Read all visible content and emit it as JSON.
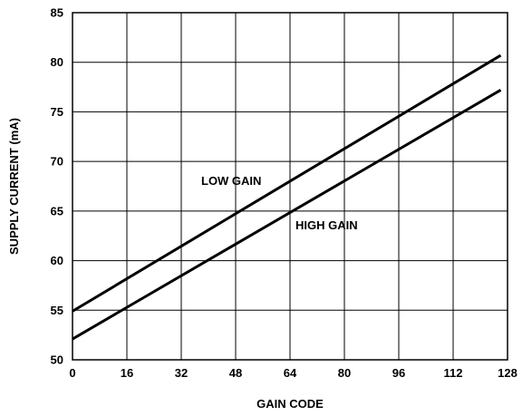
{
  "chart_data": {
    "type": "line",
    "title": "",
    "xlabel": "GAIN CODE",
    "ylabel": "SUPPLY CURRENT (mA)",
    "xlim": [
      0,
      128
    ],
    "ylim": [
      50,
      85
    ],
    "x_ticks": [
      0,
      16,
      32,
      48,
      64,
      80,
      96,
      112,
      128
    ],
    "y_ticks": [
      50,
      55,
      60,
      65,
      70,
      75,
      80,
      85
    ],
    "grid": true,
    "legend": "none",
    "series": [
      {
        "name": "LOW GAIN",
        "x": [
          0,
          126
        ],
        "values": [
          54.9,
          80.7
        ],
        "color": "#000000"
      },
      {
        "name": "HIGH GAIN",
        "x": [
          0,
          126
        ],
        "values": [
          52.1,
          77.2
        ],
        "color": "#000000"
      }
    ],
    "annotations": [
      {
        "text": "LOW GAIN",
        "series": 0
      },
      {
        "text": "HIGH GAIN",
        "series": 1
      }
    ]
  }
}
